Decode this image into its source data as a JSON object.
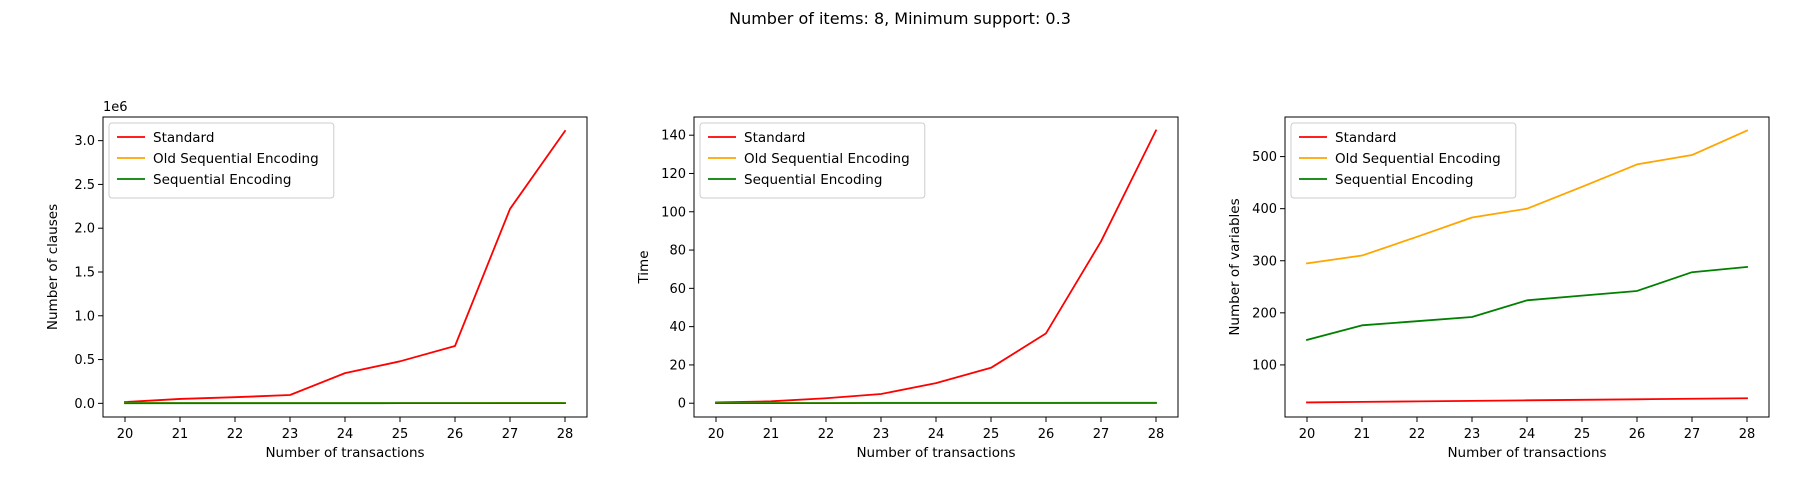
{
  "suptitle": "Number of items: 8, Minimum support: 0.3",
  "colors": {
    "Standard": "#ff0000",
    "Old Sequential Encoding": "#ffa500",
    "Sequential Encoding": "#008000"
  },
  "chart_data": [
    {
      "type": "line",
      "xlabel": "Number of transactions",
      "ylabel": "Number of clauses",
      "offset_text": "1e6",
      "x": [
        20,
        21,
        22,
        23,
        24,
        25,
        26,
        27,
        28
      ],
      "ylim": [
        -0.156,
        3.27
      ],
      "yticks": [
        0.0,
        0.5,
        1.0,
        1.5,
        2.0,
        2.5,
        3.0
      ],
      "ytick_labels": [
        "0.0",
        "0.5",
        "1.0",
        "1.5",
        "2.0",
        "2.5",
        "3.0"
      ],
      "scale": 1000000,
      "legend_position": "upper left",
      "series": [
        {
          "name": "Standard",
          "values": [
            15000,
            50000,
            70000,
            95000,
            345000,
            480000,
            655000,
            2220000,
            3110000
          ]
        },
        {
          "name": "Old Sequential Encoding",
          "values": [
            3000,
            3200,
            3400,
            3600,
            3800,
            4000,
            4200,
            4400,
            4600
          ]
        },
        {
          "name": "Sequential Encoding",
          "values": [
            1500,
            1600,
            1700,
            1800,
            1900,
            2000,
            2100,
            2200,
            2300
          ]
        }
      ]
    },
    {
      "type": "line",
      "xlabel": "Number of transactions",
      "ylabel": "Time",
      "offset_text": "",
      "x": [
        20,
        21,
        22,
        23,
        24,
        25,
        26,
        27,
        28
      ],
      "ylim": [
        -7.2,
        149.5
      ],
      "yticks": [
        0,
        20,
        40,
        60,
        80,
        100,
        120,
        140
      ],
      "ytick_labels": [
        "0",
        "20",
        "40",
        "60",
        "80",
        "100",
        "120",
        "140"
      ],
      "scale": 1,
      "legend_position": "upper left",
      "series": [
        {
          "name": "Standard",
          "values": [
            0.4,
            1.0,
            2.6,
            4.8,
            10.5,
            18.5,
            36.5,
            84.5,
            142.5
          ]
        },
        {
          "name": "Old Sequential Encoding",
          "values": [
            0.1,
            0.1,
            0.1,
            0.2,
            0.2,
            0.2,
            0.2,
            0.3,
            0.3
          ]
        },
        {
          "name": "Sequential Encoding",
          "values": [
            0.05,
            0.05,
            0.05,
            0.1,
            0.1,
            0.1,
            0.1,
            0.1,
            0.1
          ]
        }
      ]
    },
    {
      "type": "line",
      "xlabel": "Number of transactions",
      "ylabel": "Number of variables",
      "offset_text": "",
      "x": [
        20,
        21,
        22,
        23,
        24,
        25,
        26,
        27,
        28
      ],
      "ylim": [
        0,
        576
      ],
      "yticks": [
        100,
        200,
        300,
        400,
        500
      ],
      "ytick_labels": [
        "100",
        "200",
        "300",
        "400",
        "500"
      ],
      "scale": 1,
      "legend_position": "upper left",
      "series": [
        {
          "name": "Standard",
          "values": [
            28,
            29,
            30,
            31,
            32,
            33,
            34,
            35,
            36
          ]
        },
        {
          "name": "Old Sequential Encoding",
          "values": [
            295,
            310,
            346,
            383,
            400,
            442,
            485,
            503,
            550
          ]
        },
        {
          "name": "Sequential Encoding",
          "values": [
            148,
            176,
            184,
            192,
            224,
            233,
            242,
            278,
            288
          ]
        }
      ]
    }
  ]
}
